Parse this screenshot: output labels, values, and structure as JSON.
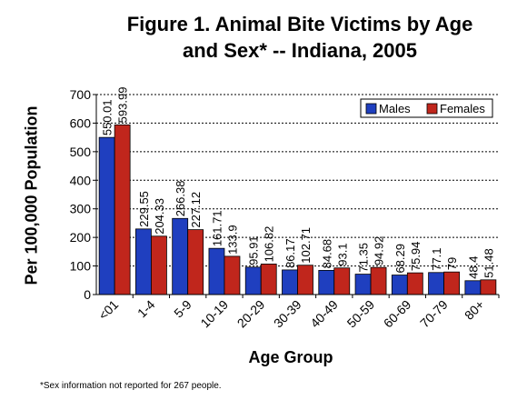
{
  "chart_data": {
    "type": "bar",
    "title_lines": [
      "Figure 1. Animal Bite Victims by Age",
      "and Sex* -- Indiana, 2005"
    ],
    "xlabel": "Age Group",
    "ylabel": "Per 100,000 Population",
    "ylim": [
      0,
      700
    ],
    "yticks": [
      0,
      100,
      200,
      300,
      400,
      500,
      600,
      700
    ],
    "grid": true,
    "legend_position": "top-right",
    "categories": [
      "<01",
      "1-4",
      "5-9",
      "10-19",
      "20-29",
      "30-39",
      "40-49",
      "50-59",
      "60-69",
      "70-79",
      "80+"
    ],
    "series": [
      {
        "name": "Males",
        "color": "#1f3fbf",
        "values": [
          550.01,
          229.55,
          266.38,
          161.71,
          95.91,
          86.17,
          84.68,
          71.35,
          68.29,
          77.1,
          48.4
        ],
        "labels": [
          "550.01",
          "229.55",
          "266.38",
          "161.71",
          "95.91",
          "86.17",
          "84.68",
          "71.35",
          "68.29",
          "77.1",
          "48.4"
        ]
      },
      {
        "name": "Females",
        "color": "#c0261c",
        "values": [
          593.99,
          204.33,
          227.12,
          133.9,
          106.82,
          102.71,
          93.1,
          94.92,
          75.94,
          79,
          51.48
        ],
        "labels": [
          "593.99",
          "204.33",
          "227.12",
          "133.9",
          "106.82",
          "102.71",
          "93.1",
          "94.92",
          "75.94",
          "79",
          "51.48"
        ]
      }
    ]
  },
  "footnote": "*Sex information not reported for 267 people."
}
